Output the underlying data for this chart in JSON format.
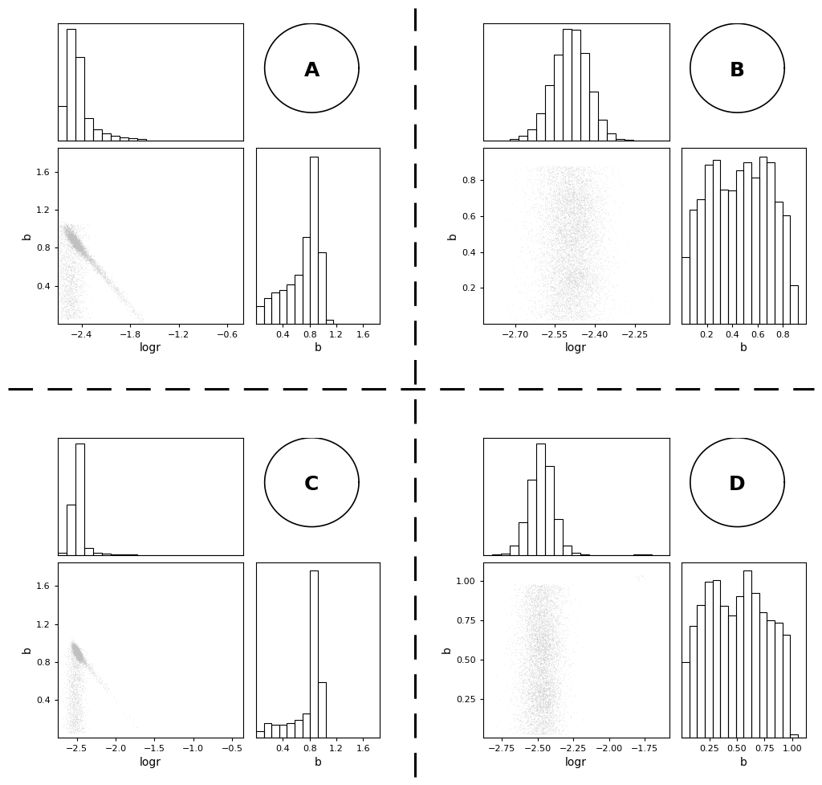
{
  "panels": {
    "A": {
      "logr_range": [
        -2.7,
        -0.4
      ],
      "b_range": [
        0.0,
        1.85
      ],
      "logr_ticks": [
        -2.4,
        -1.8,
        -1.2,
        -0.6
      ],
      "b_ticks_scatter": [
        0.4,
        0.8,
        1.2,
        1.6
      ],
      "b_ticks_hist": [
        0.4,
        0.8,
        1.2,
        1.6
      ],
      "label": "A"
    },
    "B": {
      "logr_range": [
        -2.82,
        -2.12
      ],
      "b_range": [
        0.0,
        0.98
      ],
      "logr_ticks": [
        -2.7,
        -2.55,
        -2.4,
        -2.25
      ],
      "b_ticks_scatter": [
        0.2,
        0.4,
        0.6,
        0.8
      ],
      "b_ticks_hist": [
        0.2,
        0.4,
        0.6,
        0.8
      ],
      "label": "B"
    },
    "C": {
      "logr_range": [
        -2.75,
        -0.35
      ],
      "b_range": [
        0.0,
        1.85
      ],
      "logr_ticks": [
        -2.5,
        -2.0,
        -1.5,
        -1.0,
        -0.5
      ],
      "b_ticks_scatter": [
        0.4,
        0.8,
        1.2,
        1.6
      ],
      "b_ticks_hist": [
        0.4,
        0.8,
        1.2,
        1.6
      ],
      "label": "C"
    },
    "D": {
      "logr_range": [
        -2.88,
        -1.58
      ],
      "b_range": [
        0.0,
        1.12
      ],
      "logr_ticks": [
        -2.75,
        -2.5,
        -2.25,
        -2.0,
        -1.75
      ],
      "b_ticks_scatter": [
        0.25,
        0.5,
        0.75,
        1.0
      ],
      "b_ticks_hist": [
        0.25,
        0.5,
        0.75,
        1.0
      ],
      "label": "D"
    }
  },
  "background_color": "#ffffff",
  "label_fontsize": 18,
  "tick_fontsize": 8,
  "axis_label_fontsize": 10
}
